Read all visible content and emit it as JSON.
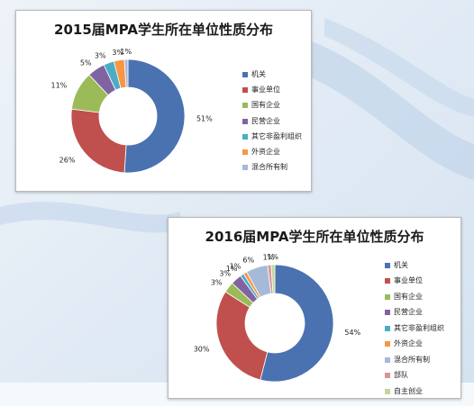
{
  "background": {
    "base": "#dfe9f3",
    "swirl": "#a8c4e0",
    "floor": "#ffffff"
  },
  "chart_data": [
    {
      "type": "pie",
      "variant": "donut",
      "title": "2015届MPA学生所在单位性质分布",
      "categories": [
        "机关",
        "事业单位",
        "国有企业",
        "民营企业",
        "其它非盈利组织",
        "外资企业",
        "混合所有制"
      ],
      "values": [
        51,
        26,
        11,
        5,
        3,
        3,
        1
      ],
      "labels": [
        "51%",
        "26%",
        "11%",
        "5%",
        "3%",
        "3%",
        "1%"
      ],
      "colors": [
        "#4a72b0",
        "#c0504d",
        "#9bbb59",
        "#8064a2",
        "#4bacc6",
        "#f79646",
        "#a6b9d9"
      ],
      "legend_position": "right"
    },
    {
      "type": "pie",
      "variant": "donut",
      "title": "2016届MPA学生所在单位性质分布",
      "categories": [
        "机关",
        "事业单位",
        "国有企业",
        "民营企业",
        "其它非盈利组织",
        "外资企业",
        "混合所有制",
        "部队",
        "自主创业"
      ],
      "values": [
        54,
        30,
        3,
        3,
        1,
        1,
        6,
        1,
        1
      ],
      "labels": [
        "54%",
        "30%",
        "3%",
        "3%",
        "1%",
        "1%",
        "6%",
        "1%",
        "1%"
      ],
      "colors": [
        "#4a72b0",
        "#c0504d",
        "#9bbb59",
        "#8064a2",
        "#4bacc6",
        "#f79646",
        "#a6b9d9",
        "#d99694",
        "#c3d69b"
      ],
      "legend_position": "right"
    }
  ]
}
